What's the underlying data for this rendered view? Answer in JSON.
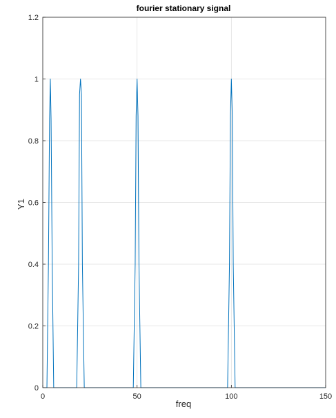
{
  "chart_data": {
    "type": "line",
    "title": "fourier stationary signal",
    "xlabel": "freq",
    "ylabel": "Y1",
    "xlim": [
      0,
      150
    ],
    "ylim": [
      0,
      1.2
    ],
    "xticks": [
      "0",
      "50",
      "100",
      "150"
    ],
    "yticks": [
      "0",
      "0.2",
      "0.4",
      "0.6",
      "0.8",
      "1",
      "1.2"
    ],
    "grid": true,
    "legend": "none",
    "series": [
      {
        "color": "#0072bd",
        "x": [
          0,
          2.2,
          3,
          3.6,
          4,
          4.4,
          5,
          5.8,
          18,
          19,
          19.5,
          20,
          20.5,
          21,
          22,
          48,
          49,
          49.5,
          50,
          50.5,
          51,
          52,
          98,
          99,
          99.5,
          100,
          100.5,
          101,
          102,
          150
        ],
        "y": [
          0,
          0,
          0.4,
          0.87,
          1,
          0.87,
          0.4,
          0,
          0,
          0.4,
          0.95,
          1,
          0.95,
          0.4,
          0,
          0,
          0.4,
          0.88,
          1,
          0.88,
          0.4,
          0,
          0,
          0.4,
          0.88,
          1,
          0.88,
          0.4,
          0,
          0
        ]
      }
    ]
  }
}
